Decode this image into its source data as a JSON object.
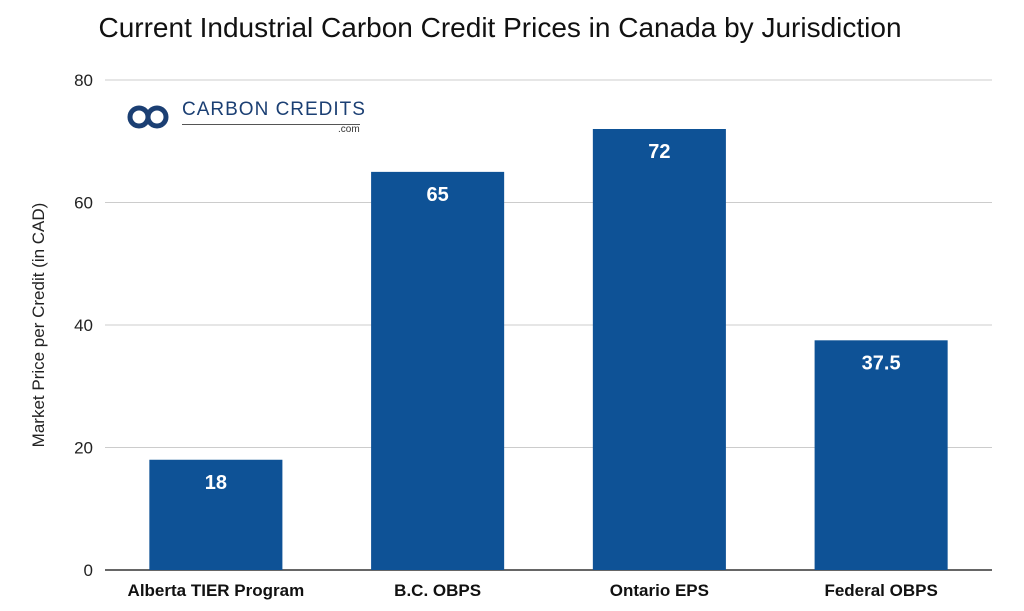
{
  "chart_data": {
    "type": "bar",
    "title": "Current Industrial Carbon Credit Prices in Canada by Jurisdiction",
    "ylabel": "Market  Price  per  Credit  (in CAD)",
    "xlabel": "",
    "categories": [
      "Alberta TIER Program",
      "B.C. OBPS",
      "Ontario EPS",
      "Federal OBPS"
    ],
    "values": [
      18,
      65,
      72,
      37.5
    ],
    "data_labels": [
      "18",
      "65",
      "72",
      "37.5"
    ],
    "ylim": [
      0,
      80
    ],
    "yticks": [
      0,
      20,
      40,
      60,
      80
    ],
    "grid": true,
    "legend": "none",
    "colors": {
      "bar": "#0e5296",
      "grid": "#cccccc",
      "axis": "#333333"
    }
  },
  "logo": {
    "name": "carbon-credits-logo",
    "text": "CARBON CREDITS",
    "sub": ".com",
    "color": "#1b3f73"
  }
}
